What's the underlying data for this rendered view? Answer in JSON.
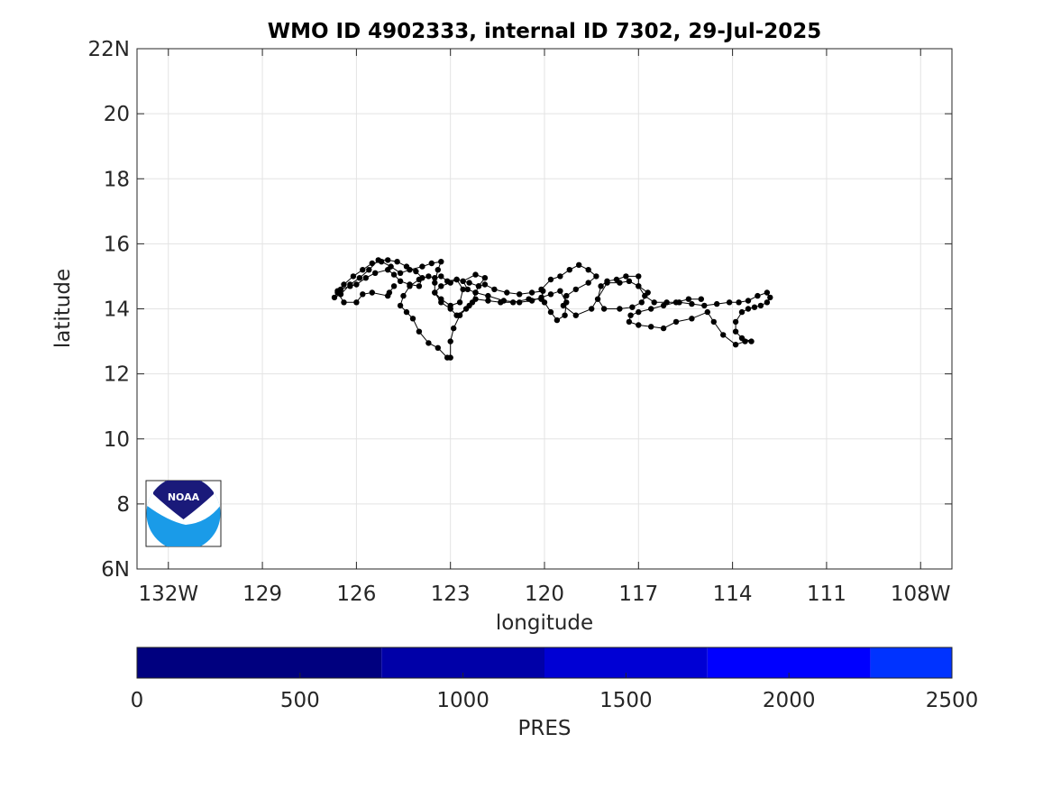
{
  "chart_data": {
    "type": "line",
    "title": "WMO ID 4902333, internal ID 7302, 29-Jul-2025",
    "xlabel": "longitude",
    "ylabel": "latitude",
    "xlim": [
      -133,
      -107
    ],
    "ylim": [
      6,
      22
    ],
    "grid": true,
    "x_ticks": [
      -132,
      -129,
      -126,
      -123,
      -120,
      -117,
      -114,
      -111,
      -108
    ],
    "x_tick_labels": [
      "132W",
      "129",
      "126",
      "123",
      "120",
      "117",
      "114",
      "111",
      "108W"
    ],
    "y_ticks": [
      6,
      8,
      10,
      12,
      14,
      16,
      18,
      20,
      22
    ],
    "y_tick_labels": [
      "6N",
      "8",
      "10",
      "12",
      "14",
      "16",
      "18",
      "20",
      "22N"
    ],
    "series": [
      {
        "marker": "dot",
        "color": "#000000",
        "points": [
          [
            -115.0,
            14.3
          ],
          [
            -115.4,
            14.3
          ],
          [
            -115.8,
            14.2
          ],
          [
            -116.2,
            14.1
          ],
          [
            -116.6,
            14.0
          ],
          [
            -117.0,
            13.9
          ],
          [
            -117.25,
            13.8
          ],
          [
            -117.3,
            13.6
          ],
          [
            -117.0,
            13.5
          ],
          [
            -116.6,
            13.45
          ],
          [
            -116.2,
            13.4
          ],
          [
            -115.8,
            13.6
          ],
          [
            -115.3,
            13.7
          ],
          [
            -114.8,
            13.9
          ],
          [
            -114.6,
            13.6
          ],
          [
            -114.3,
            13.2
          ],
          [
            -113.9,
            12.9
          ],
          [
            -113.6,
            13.0
          ],
          [
            -113.4,
            13.0
          ],
          [
            -113.7,
            13.1
          ],
          [
            -113.9,
            13.3
          ],
          [
            -113.9,
            13.6
          ],
          [
            -113.7,
            13.9
          ],
          [
            -113.5,
            14.0
          ],
          [
            -113.3,
            14.05
          ],
          [
            -113.1,
            14.1
          ],
          [
            -112.9,
            14.2
          ],
          [
            -112.8,
            14.35
          ],
          [
            -112.9,
            14.5
          ],
          [
            -113.2,
            14.4
          ],
          [
            -113.5,
            14.25
          ],
          [
            -113.8,
            14.2
          ],
          [
            -114.1,
            14.2
          ],
          [
            -114.5,
            14.15
          ],
          [
            -114.9,
            14.1
          ],
          [
            -115.3,
            14.15
          ],
          [
            -115.7,
            14.2
          ],
          [
            -116.1,
            14.2
          ],
          [
            -116.5,
            14.2
          ],
          [
            -116.8,
            14.4
          ],
          [
            -117.0,
            14.7
          ],
          [
            -117.0,
            15.0
          ],
          [
            -117.4,
            15.0
          ],
          [
            -117.7,
            14.9
          ],
          [
            -118.0,
            14.85
          ],
          [
            -118.2,
            14.7
          ],
          [
            -118.3,
            14.3
          ],
          [
            -118.1,
            14.0
          ],
          [
            -117.6,
            14.0
          ],
          [
            -117.2,
            14.05
          ],
          [
            -116.9,
            14.2
          ],
          [
            -116.7,
            14.5
          ],
          [
            -117.0,
            14.7
          ],
          [
            -117.3,
            14.85
          ],
          [
            -117.6,
            14.8
          ],
          [
            -118.0,
            14.8
          ],
          [
            -118.5,
            14.0
          ],
          [
            -119.0,
            13.8
          ],
          [
            -119.4,
            14.1
          ],
          [
            -119.3,
            14.4
          ],
          [
            -119.0,
            14.6
          ],
          [
            -118.6,
            14.8
          ],
          [
            -118.35,
            15.0
          ],
          [
            -118.6,
            15.2
          ],
          [
            -118.9,
            15.35
          ],
          [
            -119.2,
            15.2
          ],
          [
            -119.5,
            15.0
          ],
          [
            -119.8,
            14.9
          ],
          [
            -120.1,
            14.6
          ],
          [
            -120.0,
            14.2
          ],
          [
            -119.8,
            13.9
          ],
          [
            -119.6,
            13.65
          ],
          [
            -119.35,
            13.8
          ],
          [
            -119.3,
            14.2
          ],
          [
            -119.5,
            14.55
          ],
          [
            -119.8,
            14.45
          ],
          [
            -120.1,
            14.35
          ],
          [
            -120.4,
            14.25
          ],
          [
            -120.8,
            14.2
          ],
          [
            -121.3,
            14.25
          ],
          [
            -121.8,
            14.4
          ],
          [
            -122.2,
            14.5
          ],
          [
            -122.45,
            14.6
          ],
          [
            -122.6,
            14.85
          ],
          [
            -122.2,
            15.05
          ],
          [
            -121.9,
            14.95
          ],
          [
            -122.1,
            14.7
          ],
          [
            -122.4,
            14.8
          ],
          [
            -122.8,
            14.9
          ],
          [
            -123.0,
            14.8
          ],
          [
            -123.3,
            14.7
          ],
          [
            -123.5,
            14.5
          ],
          [
            -123.3,
            14.2
          ],
          [
            -123.0,
            14.0
          ],
          [
            -122.8,
            13.8
          ],
          [
            -122.5,
            14.0
          ],
          [
            -122.3,
            14.2
          ],
          [
            -122.2,
            14.5
          ],
          [
            -122.1,
            14.7
          ],
          [
            -121.9,
            14.75
          ],
          [
            -121.6,
            14.6
          ],
          [
            -121.2,
            14.5
          ],
          [
            -120.8,
            14.45
          ],
          [
            -120.4,
            14.5
          ],
          [
            -120.05,
            14.55
          ],
          [
            -120.1,
            14.3
          ],
          [
            -120.5,
            14.3
          ],
          [
            -121.0,
            14.2
          ],
          [
            -121.4,
            14.2
          ],
          [
            -121.8,
            14.25
          ],
          [
            -122.2,
            14.3
          ],
          [
            -122.4,
            14.1
          ],
          [
            -122.7,
            13.8
          ],
          [
            -122.9,
            13.4
          ],
          [
            -123.0,
            13.0
          ],
          [
            -123.0,
            12.5
          ],
          [
            -123.1,
            12.5
          ],
          [
            -123.4,
            12.8
          ],
          [
            -123.7,
            12.95
          ],
          [
            -124.0,
            13.3
          ],
          [
            -124.2,
            13.7
          ],
          [
            -124.4,
            13.9
          ],
          [
            -124.6,
            14.1
          ],
          [
            -124.5,
            14.4
          ],
          [
            -124.3,
            14.7
          ],
          [
            -124.0,
            14.9
          ],
          [
            -123.7,
            15.0
          ],
          [
            -123.5,
            14.95
          ],
          [
            -123.3,
            15.0
          ],
          [
            -123.1,
            14.85
          ],
          [
            -122.8,
            14.9
          ],
          [
            -122.6,
            14.6
          ],
          [
            -122.7,
            14.2
          ],
          [
            -123.0,
            14.1
          ],
          [
            -123.3,
            14.3
          ],
          [
            -123.5,
            14.5
          ],
          [
            -123.5,
            14.8
          ],
          [
            -123.4,
            15.2
          ],
          [
            -123.3,
            15.45
          ],
          [
            -123.6,
            15.4
          ],
          [
            -123.9,
            15.3
          ],
          [
            -124.3,
            15.2
          ],
          [
            -124.6,
            15.1
          ],
          [
            -124.9,
            15.3
          ],
          [
            -125.2,
            15.45
          ],
          [
            -125.5,
            15.4
          ],
          [
            -125.8,
            15.2
          ],
          [
            -126.1,
            15.0
          ],
          [
            -126.4,
            14.75
          ],
          [
            -126.6,
            14.55
          ],
          [
            -126.7,
            14.35
          ],
          [
            -126.5,
            14.45
          ],
          [
            -126.2,
            14.75
          ],
          [
            -125.9,
            14.95
          ],
          [
            -125.6,
            15.2
          ],
          [
            -125.3,
            15.5
          ],
          [
            -125.0,
            15.5
          ],
          [
            -124.7,
            15.45
          ],
          [
            -124.4,
            15.3
          ],
          [
            -124.1,
            15.15
          ],
          [
            -123.9,
            14.95
          ],
          [
            -124.0,
            14.7
          ],
          [
            -124.3,
            14.75
          ],
          [
            -124.6,
            14.85
          ],
          [
            -124.8,
            15.05
          ],
          [
            -125.0,
            15.2
          ],
          [
            -125.4,
            15.1
          ],
          [
            -125.7,
            14.95
          ],
          [
            -126.0,
            14.75
          ],
          [
            -126.2,
            14.7
          ],
          [
            -126.5,
            14.6
          ],
          [
            -126.6,
            14.5
          ],
          [
            -126.4,
            14.2
          ],
          [
            -126.0,
            14.2
          ],
          [
            -125.8,
            14.45
          ],
          [
            -125.5,
            14.5
          ],
          [
            -125.0,
            14.4
          ],
          [
            -124.95,
            14.5
          ],
          [
            -124.8,
            14.7
          ]
        ]
      }
    ],
    "colorbar": {
      "label": "PRES",
      "ticks": [
        0,
        500,
        1000,
        1500,
        2000,
        2500
      ],
      "range": [
        0,
        2500
      ],
      "segments": [
        {
          "from": 0,
          "to": 750,
          "color": "#00007f"
        },
        {
          "from": 750,
          "to": 1250,
          "color": "#0000a8"
        },
        {
          "from": 1250,
          "to": 1750,
          "color": "#0000d4"
        },
        {
          "from": 1750,
          "to": 2250,
          "color": "#0000ff"
        },
        {
          "from": 2250,
          "to": 2500,
          "color": "#0033ff"
        }
      ]
    },
    "logo": {
      "text": "NOAA",
      "dark": "#1a1a7a",
      "light": "#1a9be8"
    }
  }
}
